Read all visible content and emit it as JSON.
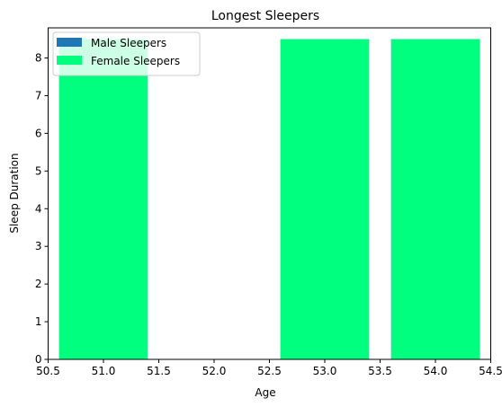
{
  "chart_data": {
    "type": "bar",
    "title": "Longest Sleepers",
    "xlabel": "Age",
    "ylabel": "Sleep Duration",
    "xlim": [
      50.5,
      54.5
    ],
    "ylim": [
      0,
      8.8
    ],
    "x_ticks": [
      50.5,
      51.0,
      51.5,
      52.0,
      52.5,
      53.0,
      53.5,
      54.0,
      54.5
    ],
    "y_ticks": [
      0,
      1,
      2,
      3,
      4,
      5,
      6,
      7,
      8
    ],
    "bar_width": 0.8,
    "legend_position": "upper-left",
    "grid": false,
    "series": [
      {
        "name": "Male Sleepers",
        "color": "#1f77b4",
        "x": [
          51,
          53,
          54
        ],
        "values": [
          8.5,
          8.5,
          8.5
        ]
      },
      {
        "name": "Female Sleepers",
        "color": "#00ff7f",
        "x": [
          51,
          53,
          54
        ],
        "values": [
          8.5,
          8.5,
          8.5
        ]
      }
    ]
  }
}
